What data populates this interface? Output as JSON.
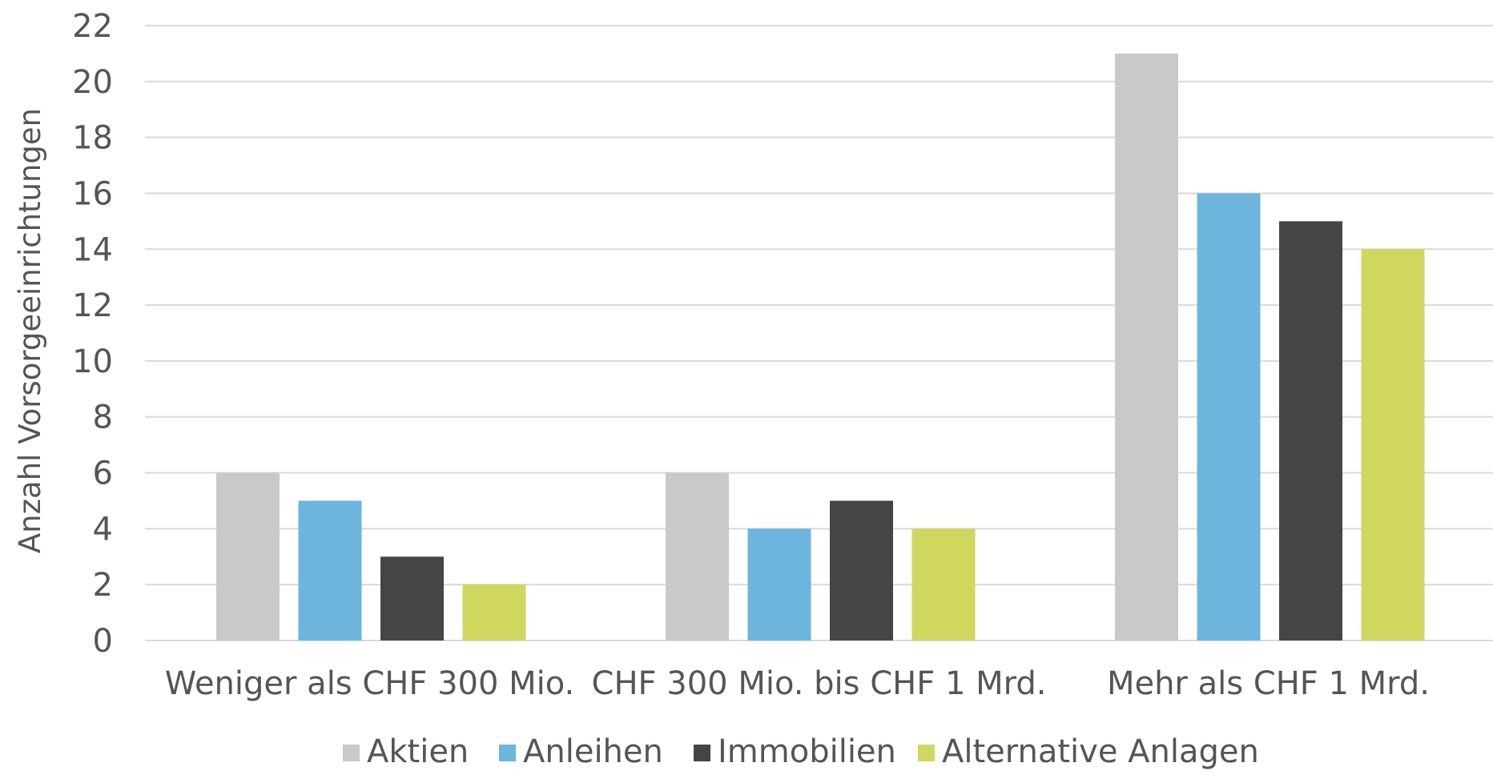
{
  "chart_data": {
    "type": "bar",
    "title": "",
    "xlabel": "",
    "ylabel": "Anzahl Vorsorgeeinrichtungen",
    "ylim": [
      0,
      22
    ],
    "yticks": [
      0,
      2,
      4,
      6,
      8,
      10,
      12,
      14,
      16,
      18,
      20,
      22
    ],
    "grid": true,
    "legend_position": "bottom",
    "categories": [
      "Weniger als CHF 300 Mio.",
      "CHF 300 Mio. bis CHF 1 Mrd.",
      "Mehr als CHF 1 Mrd."
    ],
    "series": [
      {
        "name": "Aktien",
        "color": "#c9c9c9",
        "values": [
          6,
          6,
          21
        ]
      },
      {
        "name": "Anleihen",
        "color": "#6cb5dd",
        "values": [
          5,
          4,
          16
        ]
      },
      {
        "name": "Immobilien",
        "color": "#454545",
        "values": [
          3,
          5,
          15
        ]
      },
      {
        "name": "Alternative Anlagen",
        "color": "#cfd75f",
        "values": [
          2,
          4,
          14
        ]
      }
    ]
  }
}
